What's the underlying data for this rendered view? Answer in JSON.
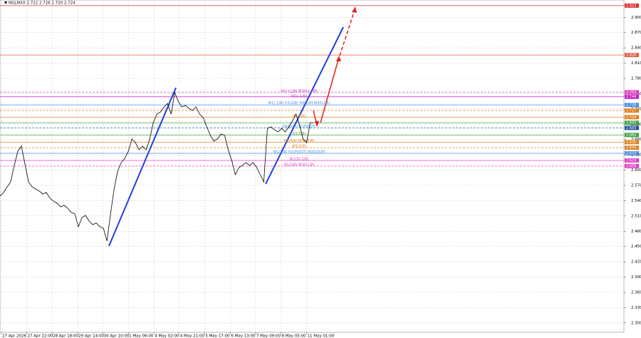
{
  "chart_data": {
    "type": "line",
    "title": "▼ NGLMXX 2.722 2.726 2.720 2.724",
    "x": [
      0,
      1,
      2,
      3,
      4,
      5,
      6,
      7,
      8,
      9,
      10,
      11,
      12,
      13,
      14,
      15,
      16,
      17,
      18,
      19,
      20,
      21,
      22,
      23,
      24,
      25,
      26,
      27,
      28,
      29,
      30,
      31,
      32,
      33,
      34,
      35,
      36,
      37,
      38,
      39,
      40,
      41,
      42,
      43,
      44,
      45,
      46,
      47,
      48,
      49,
      50,
      51,
      52,
      53,
      54,
      55,
      56,
      57,
      58,
      59,
      60,
      61,
      62,
      63,
      64,
      65,
      66,
      67,
      68,
      69,
      70,
      71,
      72,
      73,
      74,
      75,
      76,
      77,
      78,
      79,
      80,
      81,
      82,
      83,
      84,
      85,
      86,
      87,
      88
    ],
    "series": [
      {
        "color": "#000000",
        "values": [
          2.549,
          2.556,
          2.567,
          2.577,
          2.609,
          2.637,
          2.647,
          2.612,
          2.577,
          2.567,
          2.563,
          2.559,
          2.553,
          2.556,
          2.545,
          2.539,
          2.535,
          2.528,
          2.531,
          2.525,
          2.517,
          2.514,
          2.489,
          2.507,
          2.511,
          2.5,
          2.493,
          2.496,
          2.489,
          2.486,
          2.461,
          2.514,
          2.563,
          2.598,
          2.615,
          2.623,
          2.637,
          2.661,
          2.654,
          2.64,
          2.647,
          2.64,
          2.661,
          2.693,
          2.71,
          2.714,
          2.724,
          2.731,
          2.71,
          2.752,
          2.735,
          2.724,
          2.727,
          2.721,
          2.717,
          2.724,
          2.71,
          2.703,
          2.685,
          2.668,
          2.657,
          2.661,
          2.671,
          2.668,
          2.64,
          2.619,
          2.591,
          2.605,
          2.609,
          2.615,
          2.609,
          2.615,
          2.605,
          2.591,
          2.577,
          2.682,
          2.685,
          2.679,
          2.675,
          2.682,
          2.675,
          2.685,
          2.696,
          2.71,
          2.689,
          2.661,
          2.654,
          2.693,
          2.693
        ]
      }
    ],
    "xlim": [
      0,
      175
    ],
    "xticks": [
      {
        "value": 0.4,
        "label": "27 Apr 2026"
      },
      {
        "value": 7.5,
        "label": "27 Apr 22:00"
      },
      {
        "value": 14.6,
        "label": "28 Apr 18:00"
      },
      {
        "value": 21.8,
        "label": "29 Apr 14:00"
      },
      {
        "value": 28.9,
        "label": "30 Apr 10:00"
      },
      {
        "value": 36,
        "label": "1 May 06:00"
      },
      {
        "value": 43.2,
        "label": "4 May 02:00"
      },
      {
        "value": 50.3,
        "label": "4 May 21:00"
      },
      {
        "value": 57.4,
        "label": "5 May 17:00"
      },
      {
        "value": 64.6,
        "label": "6 May 13:00"
      },
      {
        "value": 71.7,
        "label": "7 May 09:00"
      },
      {
        "value": 78.8,
        "label": "8 May 05:00"
      },
      {
        "value": 86,
        "label": "11 May 01:00"
      }
    ],
    "ylim": [
      2.2816,
      2.934
    ],
    "yticks": [
      {
        "value": 2.3,
        "label": "2.300"
      },
      {
        "value": 2.33,
        "label": "2.330"
      },
      {
        "value": 2.36,
        "label": "2.360"
      },
      {
        "value": 2.39,
        "label": "2.390"
      },
      {
        "value": 2.42,
        "label": "2.420"
      },
      {
        "value": 2.45,
        "label": "2.450"
      },
      {
        "value": 2.48,
        "label": "2.480"
      },
      {
        "value": 2.51,
        "label": "2.510"
      },
      {
        "value": 2.54,
        "label": "2.540"
      },
      {
        "value": 2.57,
        "label": "2.570"
      },
      {
        "value": 2.6,
        "label": "2.600"
      },
      {
        "value": 2.63,
        "label": "2.630"
      },
      {
        "value": 2.66,
        "label": "2.660"
      },
      {
        "value": 2.69,
        "label": "2.690"
      },
      {
        "value": 2.72,
        "label": "2.720"
      },
      {
        "value": 2.75,
        "label": "2.750"
      },
      {
        "value": 2.78,
        "label": "2.780"
      },
      {
        "value": 2.81,
        "label": "2.810"
      },
      {
        "value": 2.84,
        "label": "2.840"
      },
      {
        "value": 2.87,
        "label": "2.870"
      },
      {
        "value": 2.9,
        "label": "2.900"
      }
    ],
    "grid": true,
    "levels": [
      {
        "value": 2.923,
        "color": "#e03030"
      },
      {
        "value": 2.826,
        "color": "#e06040"
      },
      {
        "value": 2.753,
        "color": "#e040c0"
      },
      {
        "value": 2.744,
        "color": "#c020c0"
      },
      {
        "value": 2.728,
        "color": "#4a90e0"
      },
      {
        "value": 2.717,
        "color": "#e08020"
      },
      {
        "value": 2.704,
        "color": "#e08020"
      },
      {
        "value": 2.693,
        "color": "#40a040"
      },
      {
        "value": 2.683,
        "color": "#2050a0"
      },
      {
        "value": 2.669,
        "color": "#40a040"
      },
      {
        "value": 2.655,
        "color": "#e08020"
      },
      {
        "value": 2.644,
        "color": "#e08020"
      },
      {
        "value": 2.633,
        "color": "#4a90e0"
      },
      {
        "value": 2.619,
        "color": "#e040c0"
      },
      {
        "value": 2.608,
        "color": "#e040c0"
      }
    ],
    "annotations": [
      {
        "text": "H1(+1/8) M30(+2/8)",
        "value": 2.752,
        "color": "#c020c0"
      },
      {
        "value": 2.742,
        "text": "W1(-1/8)",
        "color": "#c020c0"
      },
      {
        "value": 2.729,
        "text": "W1(-1/8) D1(2/8) H4(6/8) M30(2/8)",
        "color": "#4a90e0"
      },
      {
        "value": 2.703,
        "text": "H1(8/8)",
        "color": "#e08020"
      },
      {
        "value": 2.683,
        "text": "H4(8/8) H1(PIVOT)",
        "color": "#4a90e0"
      },
      {
        "value": 2.669,
        "text": "D1(5/8)",
        "color": "#40a040"
      },
      {
        "value": 2.655,
        "text": "H1(5/8) M30(5/8)",
        "color": "#e08020"
      },
      {
        "value": 2.644,
        "text": "W1(5/8)",
        "color": "#e08020"
      },
      {
        "value": 2.633,
        "text": "W1(5/8) H1(PIVOT) M30(SUP)",
        "color": "#4a90e0"
      },
      {
        "value": 2.619,
        "text": "W1(0/-1/8)",
        "color": "#e040c0"
      },
      {
        "value": 2.608,
        "text": "H1(3/8) M30(1/8)",
        "color": "#e040c0"
      }
    ]
  }
}
